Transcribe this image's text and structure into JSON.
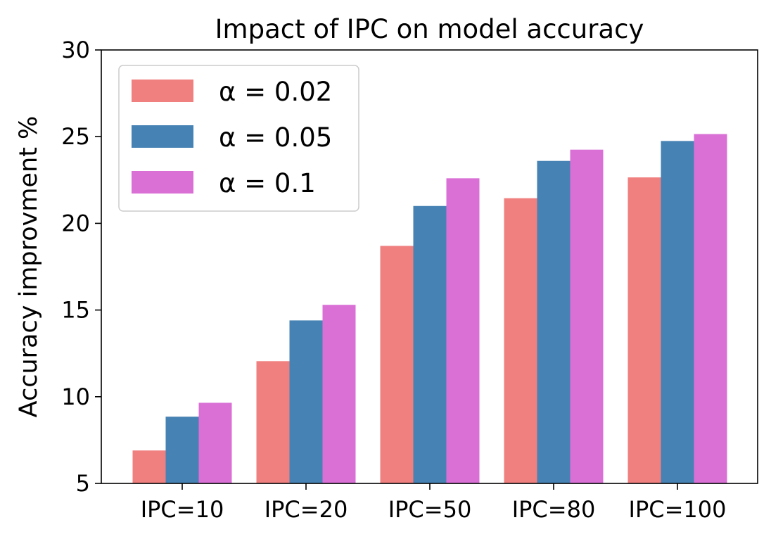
{
  "chart_data": {
    "type": "bar",
    "title": "Impact of IPC on model accuracy",
    "xlabel": "",
    "ylabel": "Accuracy improvment %",
    "categories": [
      "IPC=10",
      "IPC=20",
      "IPC=50",
      "IPC=80",
      "IPC=100"
    ],
    "series": [
      {
        "name": "α = 0.02",
        "color": "#f08080",
        "values": [
          6.9,
          12.05,
          18.7,
          21.45,
          22.65
        ]
      },
      {
        "name": "α = 0.05",
        "color": "#4682b4",
        "values": [
          8.85,
          14.4,
          21.0,
          23.6,
          24.75
        ]
      },
      {
        "name": "α = 0.1",
        "color": "#da70d6",
        "values": [
          9.65,
          15.3,
          22.6,
          24.25,
          25.15
        ]
      }
    ],
    "ylim": [
      5,
      30
    ],
    "yticks": [
      "5",
      "10",
      "15",
      "20",
      "25",
      "30"
    ],
    "grid": false,
    "legend_position": "top-left"
  }
}
